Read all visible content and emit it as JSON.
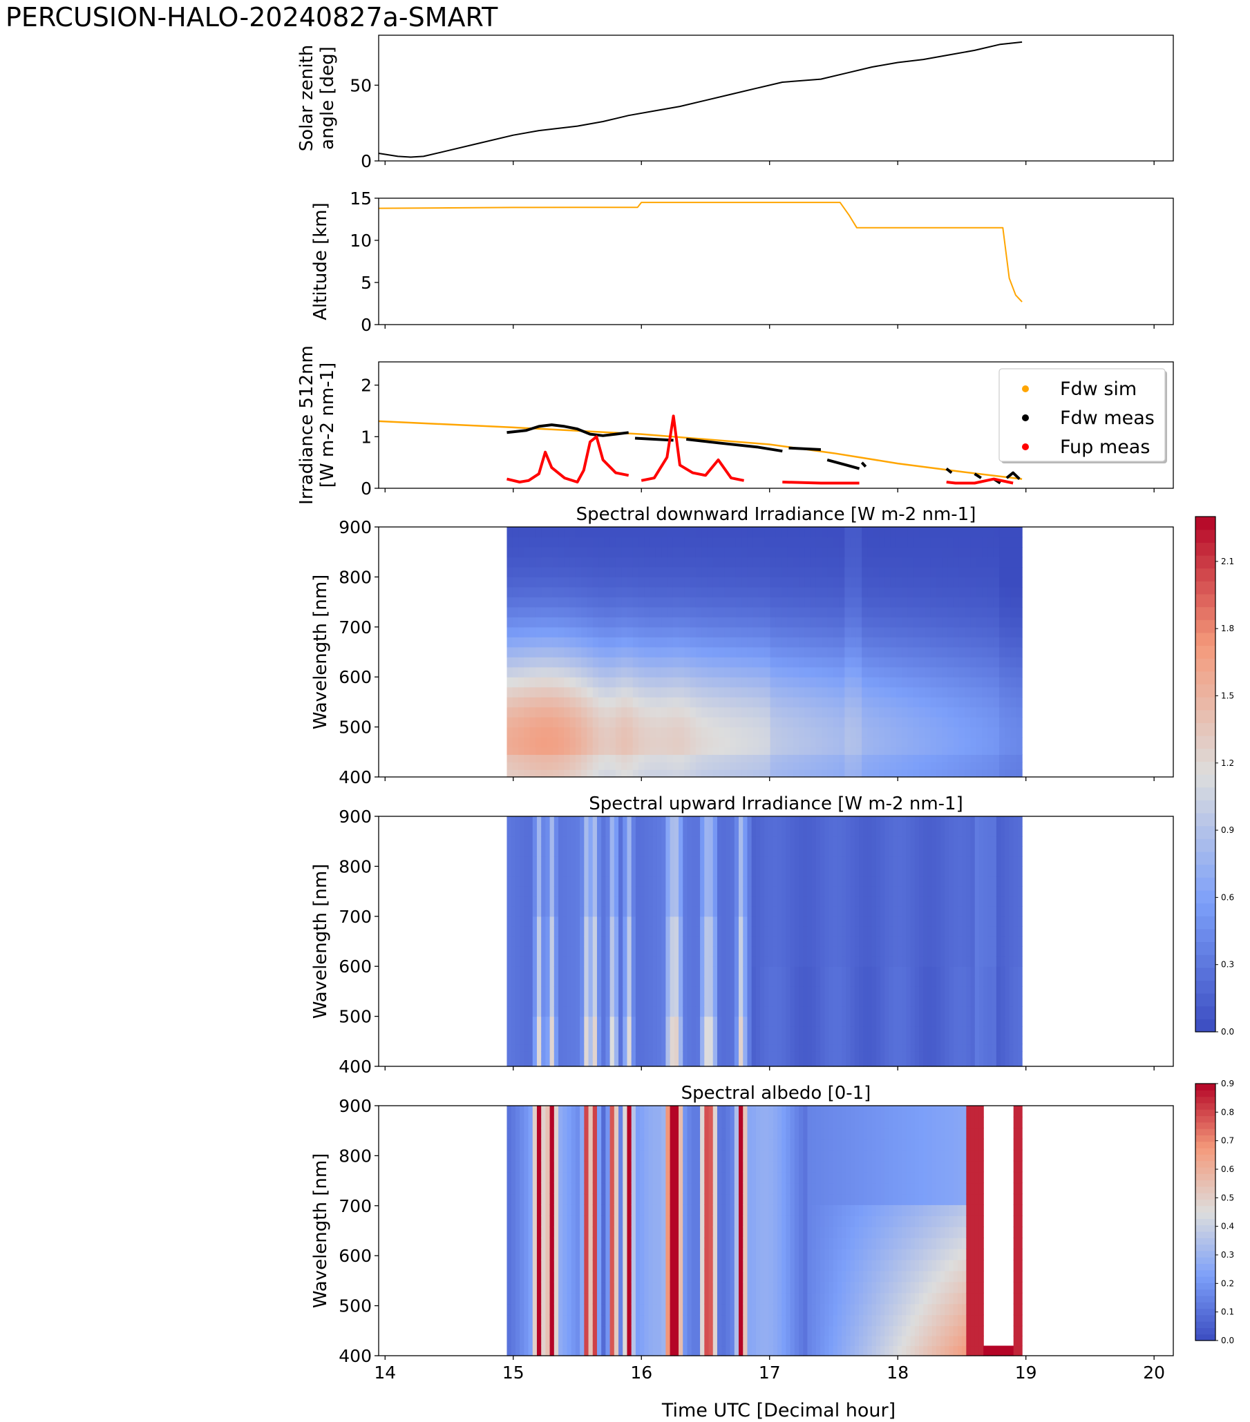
{
  "figure_title": "PERCUSION-HALO-20240827a-SMART",
  "xlabel": "Time UTC [Decimal hour]",
  "chart_data": [
    {
      "id": "sza",
      "type": "line",
      "ylabel": [
        "Solar zenith",
        "angle [deg]"
      ],
      "xlim": [
        13.95,
        20.15
      ],
      "ylim": [
        0,
        83
      ],
      "yticks": [
        0,
        50
      ],
      "color": "#000000",
      "x": [
        13.95,
        14.1,
        14.2,
        14.3,
        14.5,
        14.7,
        15.0,
        15.2,
        15.5,
        15.7,
        15.9,
        16.1,
        16.3,
        16.5,
        16.7,
        16.9,
        17.1,
        17.4,
        17.6,
        17.8,
        18.0,
        18.2,
        18.4,
        18.6,
        18.8,
        18.97
      ],
      "y": [
        5,
        3,
        2.5,
        3,
        7,
        11,
        17,
        20,
        23,
        26,
        30,
        33,
        36,
        40,
        44,
        48,
        52,
        54,
        58,
        62,
        65,
        67,
        70,
        73,
        77,
        78.5
      ]
    },
    {
      "id": "alt",
      "type": "line",
      "ylabel": [
        "Altitude [km]"
      ],
      "xlim": [
        13.95,
        20.15
      ],
      "ylim": [
        0,
        15
      ],
      "yticks": [
        0,
        5,
        10,
        15
      ],
      "color": "#ffa500",
      "x": [
        13.95,
        14.5,
        15.0,
        15.5,
        15.97,
        16.0,
        16.5,
        17.0,
        17.55,
        17.62,
        17.68,
        18.0,
        18.5,
        18.82,
        18.87,
        18.92,
        18.97
      ],
      "y": [
        13.8,
        13.85,
        13.9,
        13.92,
        13.92,
        14.5,
        14.5,
        14.5,
        14.5,
        13.0,
        11.5,
        11.5,
        11.5,
        11.5,
        5.5,
        3.5,
        2.7
      ]
    },
    {
      "id": "irr",
      "type": "scatter",
      "ylabel": [
        "Irradiance 512nm",
        "[W m-2 nm-1]"
      ],
      "xlim": [
        13.95,
        20.15
      ],
      "ylim": [
        0,
        2.45
      ],
      "yticks": [
        0,
        1,
        2
      ],
      "legend": {
        "loc": "upper-right",
        "entries": [
          {
            "label": "Fdw sim",
            "color": "#ffa500"
          },
          {
            "label": "Fdw meas",
            "color": "#000000"
          },
          {
            "label": "Fup meas",
            "color": "#ff0000"
          }
        ]
      },
      "series": [
        {
          "name": "Fdw sim",
          "color": "#ffa500",
          "style": "line",
          "x": [
            13.95,
            15.0,
            16.0,
            17.0,
            17.5,
            18.0,
            18.5,
            18.97
          ],
          "y": [
            1.3,
            1.18,
            1.05,
            0.85,
            0.68,
            0.48,
            0.32,
            0.18
          ]
        },
        {
          "name": "Fdw meas",
          "color": "#000000",
          "style": "segments",
          "segments": [
            {
              "x": [
                14.95,
                15.1,
                15.2,
                15.3,
                15.4,
                15.5,
                15.6,
                15.7,
                15.8,
                15.9
              ],
              "y": [
                1.08,
                1.12,
                1.2,
                1.23,
                1.2,
                1.15,
                1.05,
                1.02,
                1.05,
                1.08
              ]
            },
            {
              "x": [
                15.95,
                16.1,
                16.25
              ],
              "y": [
                0.97,
                0.95,
                0.93
              ]
            },
            {
              "x": [
                16.35,
                16.6,
                16.9,
                17.1
              ],
              "y": [
                0.95,
                0.88,
                0.8,
                0.72
              ]
            },
            {
              "x": [
                17.15,
                17.4
              ],
              "y": [
                0.78,
                0.75
              ]
            },
            {
              "x": [
                17.45,
                17.6,
                17.7
              ],
              "y": [
                0.55,
                0.45,
                0.38
              ]
            },
            {
              "x": [
                17.72,
                17.75
              ],
              "y": [
                0.5,
                0.42
              ]
            },
            {
              "x": [
                18.38,
                18.42
              ],
              "y": [
                0.38,
                0.3
              ]
            },
            {
              "x": [
                18.6,
                18.65
              ],
              "y": [
                0.28,
                0.2
              ]
            },
            {
              "x": [
                18.75,
                18.8
              ],
              "y": [
                0.18,
                0.1
              ]
            },
            {
              "x": [
                18.85,
                18.9,
                18.95
              ],
              "y": [
                0.2,
                0.3,
                0.18
              ]
            }
          ]
        },
        {
          "name": "Fup meas",
          "color": "#ff0000",
          "style": "segments",
          "segments": [
            {
              "x": [
                14.95,
                15.05,
                15.12,
                15.2,
                15.25,
                15.3,
                15.4,
                15.5,
                15.55,
                15.6,
                15.65,
                15.7,
                15.8,
                15.9
              ],
              "y": [
                0.18,
                0.12,
                0.15,
                0.28,
                0.7,
                0.4,
                0.2,
                0.12,
                0.35,
                0.9,
                1.0,
                0.55,
                0.3,
                0.25
              ]
            },
            {
              "x": [
                16.0,
                16.1,
                16.2,
                16.25,
                16.3,
                16.4,
                16.5,
                16.6,
                16.7,
                16.8
              ],
              "y": [
                0.15,
                0.2,
                0.6,
                1.4,
                0.45,
                0.3,
                0.25,
                0.55,
                0.2,
                0.15
              ]
            },
            {
              "x": [
                17.1,
                17.4,
                17.7
              ],
              "y": [
                0.12,
                0.1,
                0.1
              ]
            },
            {
              "x": [
                18.38,
                18.45,
                18.6,
                18.75,
                18.9
              ],
              "y": [
                0.12,
                0.1,
                0.1,
                0.18,
                0.1
              ]
            }
          ]
        }
      ]
    },
    {
      "id": "fdw",
      "type": "heatmap",
      "title": "Spectral downward Irradiance [W m-2 nm-1]",
      "ylabel": [
        "Wavelength [nm]"
      ],
      "xlim": [
        13.95,
        20.15
      ],
      "ylim": [
        400,
        900
      ],
      "data_xrange": [
        14.95,
        18.97
      ],
      "yticks": [
        400,
        500,
        600,
        700,
        800,
        900
      ],
      "colorbar": {
        "range": [
          0,
          2.3
        ],
        "ticks": [
          "0.0",
          "0.3",
          "0.6",
          "0.9",
          "1.2",
          "1.5",
          "1.8",
          "2.1"
        ]
      }
    },
    {
      "id": "fup",
      "type": "heatmap",
      "title": "Spectral upward Irradiance [W m-2 nm-1]",
      "ylabel": [
        "Wavelength [nm]"
      ],
      "xlim": [
        13.95,
        20.15
      ],
      "ylim": [
        400,
        900
      ],
      "data_xrange": [
        14.95,
        18.97
      ],
      "yticks": [
        400,
        500,
        600,
        700,
        800,
        900
      ]
    },
    {
      "id": "alb",
      "type": "heatmap",
      "title": "Spectral albedo [0-1]",
      "ylabel": [
        "Wavelength [nm]"
      ],
      "xlim": [
        13.95,
        20.15
      ],
      "ylim": [
        400,
        900
      ],
      "data_xrange": [
        14.95,
        18.97
      ],
      "yticks": [
        400,
        500,
        600,
        700,
        800,
        900
      ],
      "xticks": [
        "14",
        "15",
        "16",
        "17",
        "18",
        "19",
        "20"
      ],
      "colorbar": {
        "range": [
          0,
          0.9
        ],
        "ticks": [
          "0.0",
          "0.1",
          "0.2",
          "0.3",
          "0.4",
          "0.5",
          "0.6",
          "0.7",
          "0.8",
          "0.9"
        ]
      }
    }
  ]
}
